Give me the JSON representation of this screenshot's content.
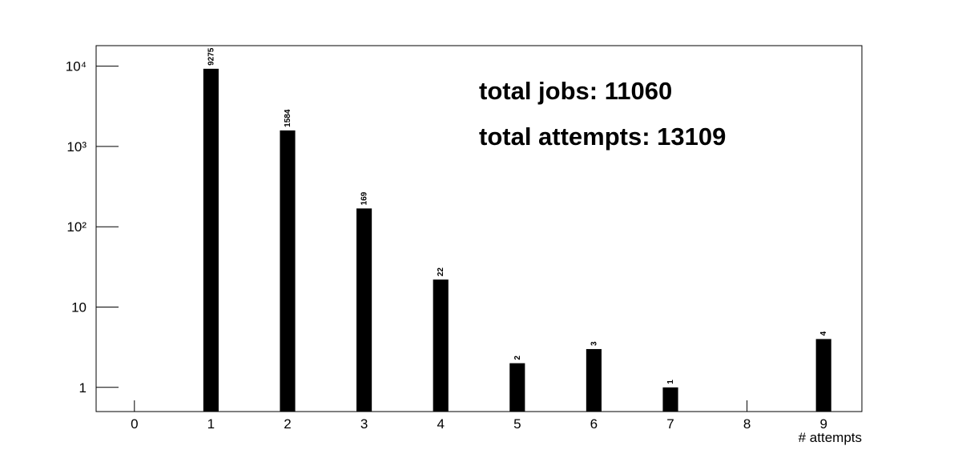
{
  "chart_data": {
    "type": "bar",
    "x": [
      1,
      2,
      3,
      4,
      5,
      6,
      7,
      9
    ],
    "values": [
      9275,
      1584,
      169,
      22,
      2,
      3,
      1,
      4
    ],
    "color": "#000000",
    "xlabel": "# attempts",
    "annotations": [
      "total jobs: 11060",
      "total attempts: 13109"
    ],
    "xlim": [
      -0.5,
      9.5
    ],
    "xticks": [
      0,
      1,
      2,
      3,
      4,
      5,
      6,
      7,
      8,
      9
    ],
    "ylim": [
      0.5,
      18000
    ],
    "yticks": [
      1,
      10,
      {
        "value": 100,
        "label": "10²"
      },
      {
        "value": 1000,
        "label": "10³"
      },
      {
        "value": 10000,
        "label": "10⁴"
      }
    ],
    "log_y": true
  }
}
